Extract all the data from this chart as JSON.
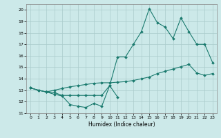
{
  "xlabel": "Humidex (Indice chaleur)",
  "xlim": [
    -0.5,
    23.5
  ],
  "ylim": [
    11,
    20.5
  ],
  "yticks": [
    11,
    12,
    13,
    14,
    15,
    16,
    17,
    18,
    19,
    20
  ],
  "xticks": [
    0,
    1,
    2,
    3,
    4,
    5,
    6,
    7,
    8,
    9,
    10,
    11,
    12,
    13,
    14,
    15,
    16,
    17,
    18,
    19,
    20,
    21,
    22,
    23
  ],
  "background_color": "#cce9e9",
  "grid_color": "#aacccc",
  "line_color": "#1a7a6e",
  "series": [
    {
      "x": [
        0,
        1,
        2,
        3,
        4,
        5,
        6,
        7,
        8,
        9,
        10,
        11
      ],
      "y": [
        13.2,
        13.0,
        12.85,
        12.65,
        12.5,
        11.75,
        11.6,
        11.5,
        11.85,
        11.6,
        13.4,
        12.4
      ]
    },
    {
      "x": [
        0,
        1,
        2,
        3,
        4,
        5,
        6,
        7,
        8,
        9,
        10,
        11,
        12,
        13,
        14,
        15,
        16,
        17,
        18,
        19,
        20,
        21,
        22,
        23
      ],
      "y": [
        13.2,
        13.0,
        12.85,
        12.8,
        12.55,
        12.55,
        12.55,
        12.55,
        12.55,
        12.55,
        13.4,
        15.9,
        15.9,
        17.0,
        18.1,
        20.1,
        18.9,
        18.5,
        17.5,
        19.3,
        18.1,
        17.0,
        17.0,
        15.4
      ]
    },
    {
      "x": [
        0,
        1,
        2,
        3,
        4,
        5,
        6,
        7,
        8,
        9,
        10,
        11,
        12,
        13,
        14,
        15,
        16,
        17,
        18,
        19,
        20,
        21,
        22,
        23
      ],
      "y": [
        13.2,
        13.0,
        12.85,
        13.0,
        13.15,
        13.3,
        13.4,
        13.5,
        13.6,
        13.65,
        13.65,
        13.7,
        13.75,
        13.85,
        14.0,
        14.15,
        14.45,
        14.65,
        14.85,
        15.05,
        15.25,
        14.5,
        14.3,
        14.45
      ]
    }
  ]
}
